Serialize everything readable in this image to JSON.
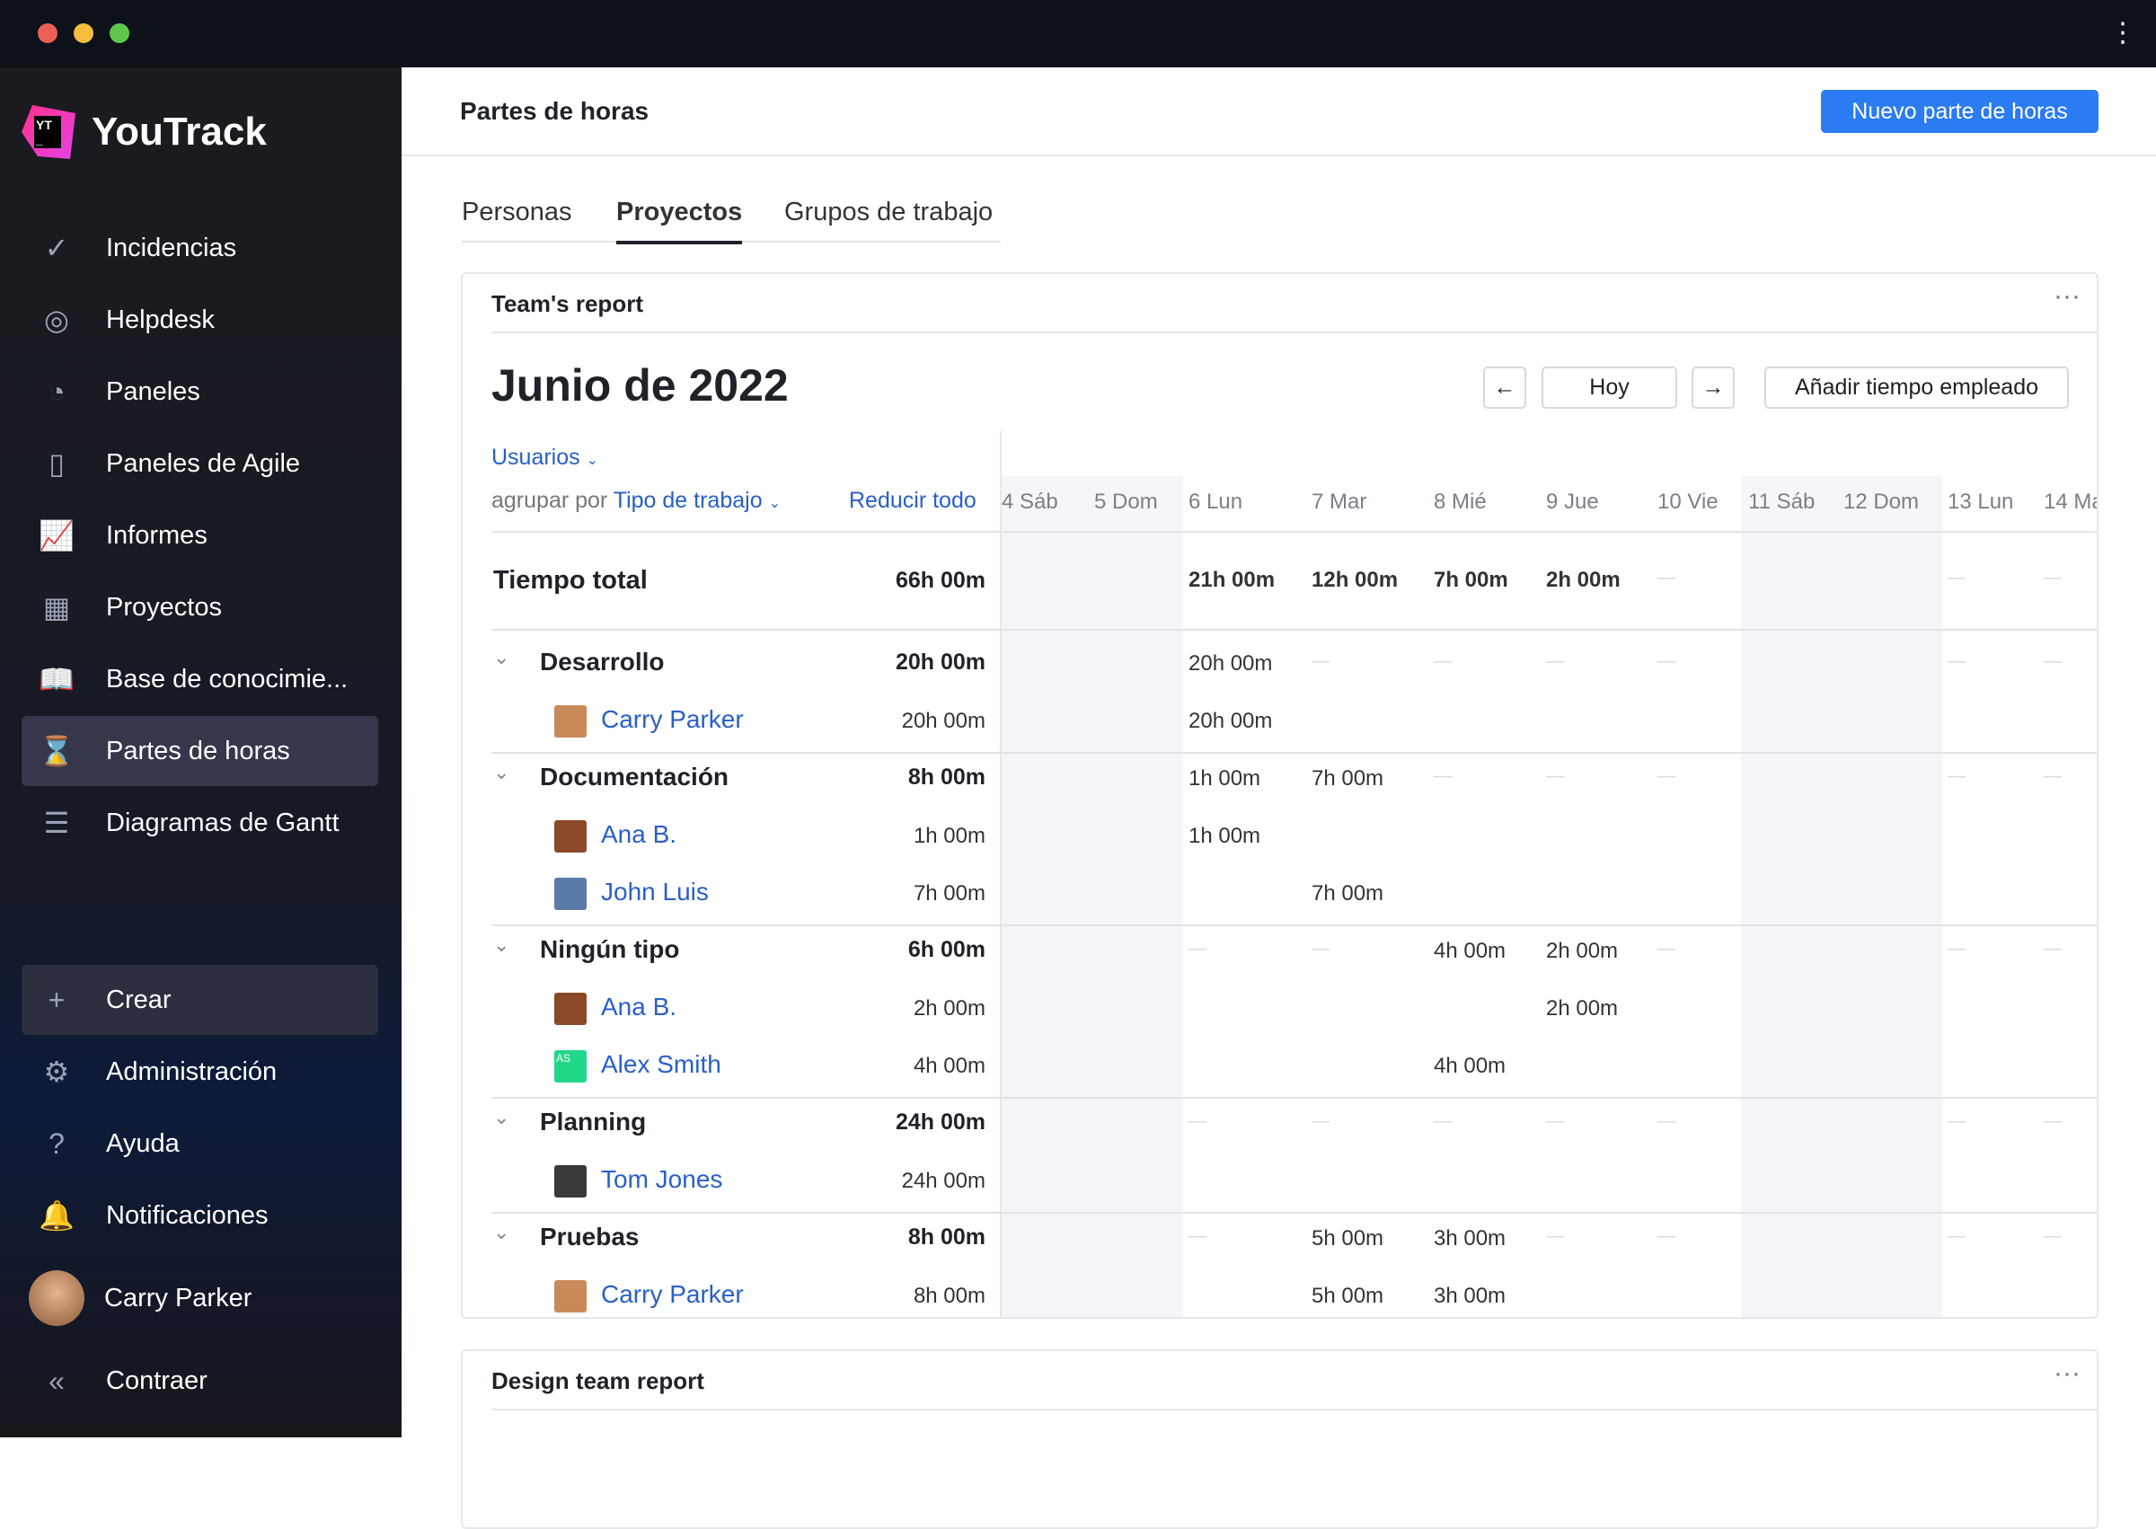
{
  "window": {
    "dot_colors": [
      "#ec5f57",
      "#f4bd3c",
      "#5fc74d"
    ]
  },
  "sidebar": {
    "brand": "YouTrack",
    "logo_mark": "YT",
    "items": [
      {
        "label": "Incidencias",
        "icon": "check-circle-icon"
      },
      {
        "label": "Helpdesk",
        "icon": "lifebuoy-icon"
      },
      {
        "label": "Paneles",
        "icon": "dashboard-icon"
      },
      {
        "label": "Paneles de Agile",
        "icon": "agile-board-icon"
      },
      {
        "label": "Informes",
        "icon": "chart-icon"
      },
      {
        "label": "Proyectos",
        "icon": "grid-icon"
      },
      {
        "label": "Base de conocimie...",
        "icon": "book-icon"
      },
      {
        "label": "Partes de horas",
        "icon": "hourglass-icon",
        "active": true
      },
      {
        "label": "Diagramas de Gantt",
        "icon": "gantt-icon"
      }
    ],
    "bottom": [
      {
        "label": "Crear",
        "icon": "plus-icon"
      },
      {
        "label": "Administración",
        "icon": "gear-icon"
      },
      {
        "label": "Ayuda",
        "icon": "help-icon"
      },
      {
        "label": "Notificaciones",
        "icon": "bell-icon"
      }
    ],
    "user": "Carry Parker",
    "collapse": "Contraer"
  },
  "header": {
    "title": "Partes de horas",
    "new_button": "Nuevo parte de horas"
  },
  "tabs": [
    {
      "label": "Personas"
    },
    {
      "label": "Proyectos",
      "selected": true
    },
    {
      "label": "Grupos de trabajo"
    }
  ],
  "report": {
    "title": "Team's report",
    "month": "Junio de 2022",
    "today": "Hoy",
    "add_time": "Añadir tiempo empleado",
    "users_filter": "Usuarios",
    "group_by_label": "agrupar por",
    "group_by_value": "Tipo de trabajo",
    "collapse_all": "Reducir todo",
    "days": [
      "4 Sáb",
      "5 Dom",
      "6 Lun",
      "7 Mar",
      "8 Mié",
      "9 Jue",
      "10 Vie",
      "11 Sáb",
      "12 Dom",
      "13 Lun",
      "14 Ma"
    ],
    "weekend": [
      true,
      true,
      false,
      false,
      false,
      false,
      false,
      true,
      true,
      false,
      false
    ],
    "total": {
      "label": "Tiempo total",
      "value": "66h 00m",
      "days": [
        "",
        "",
        "21h 00m",
        "12h 00m",
        "7h 00m",
        "2h 00m",
        "",
        "",
        "",
        "",
        ""
      ]
    },
    "groups": [
      {
        "label": "Desarrollo",
        "total": "20h 00m",
        "days": [
          "",
          "",
          "20h 00m",
          "",
          "",
          "",
          "",
          "",
          "",
          "",
          ""
        ],
        "people": [
          {
            "name": "Carry Parker",
            "total": "20h 00m",
            "avatar": "#c98a5a",
            "days": [
              "",
              "",
              "20h 00m",
              "",
              "",
              "",
              "",
              "",
              "",
              "",
              ""
            ]
          }
        ]
      },
      {
        "label": "Documentación",
        "total": "8h 00m",
        "days": [
          "",
          "",
          "1h 00m",
          "7h 00m",
          "",
          "",
          "",
          "",
          "",
          "",
          ""
        ],
        "people": [
          {
            "name": "Ana B.",
            "total": "1h 00m",
            "avatar": "#8a4a2a",
            "days": [
              "",
              "",
              "1h 00m",
              "",
              "",
              "",
              "",
              "",
              "",
              "",
              ""
            ]
          },
          {
            "name": "John Luis",
            "total": "7h 00m",
            "avatar": "#5a7aa8",
            "days": [
              "",
              "",
              "",
              "7h 00m",
              "",
              "",
              "",
              "",
              "",
              "",
              ""
            ]
          }
        ]
      },
      {
        "label": "Ningún tipo",
        "total": "6h 00m",
        "days": [
          "",
          "",
          "",
          "",
          "4h 00m",
          "2h 00m",
          "",
          "",
          "",
          "",
          ""
        ],
        "people": [
          {
            "name": "Ana B.",
            "total": "2h 00m",
            "avatar": "#8a4a2a",
            "days": [
              "",
              "",
              "",
              "",
              "",
              "2h 00m",
              "",
              "",
              "",
              "",
              ""
            ]
          },
          {
            "name": "Alex Smith",
            "total": "4h 00m",
            "avatar": "#21d789",
            "initials": "AS",
            "days": [
              "",
              "",
              "",
              "",
              "4h 00m",
              "",
              "",
              "",
              "",
              "",
              ""
            ]
          }
        ]
      },
      {
        "label": "Planning",
        "total": "24h 00m",
        "days": [
          "",
          "",
          "",
          "",
          "",
          "",
          "",
          "",
          "",
          "",
          ""
        ],
        "people": [
          {
            "name": "Tom Jones",
            "total": "24h 00m",
            "avatar": "#3a3a3a",
            "days": [
              "",
              "",
              "",
              "",
              "",
              "",
              "",
              "",
              "",
              "",
              ""
            ]
          }
        ]
      },
      {
        "label": "Pruebas",
        "total": "8h 00m",
        "days": [
          "",
          "",
          "",
          "5h 00m",
          "3h 00m",
          "",
          "",
          "",
          "",
          "",
          ""
        ],
        "people": [
          {
            "name": "Carry Parker",
            "total": "8h 00m",
            "avatar": "#c98a5a",
            "days": [
              "",
              "",
              "",
              "5h 00m",
              "3h 00m",
              "",
              "",
              "",
              "",
              "",
              ""
            ]
          }
        ]
      }
    ]
  },
  "report2": {
    "title": "Design team report"
  }
}
